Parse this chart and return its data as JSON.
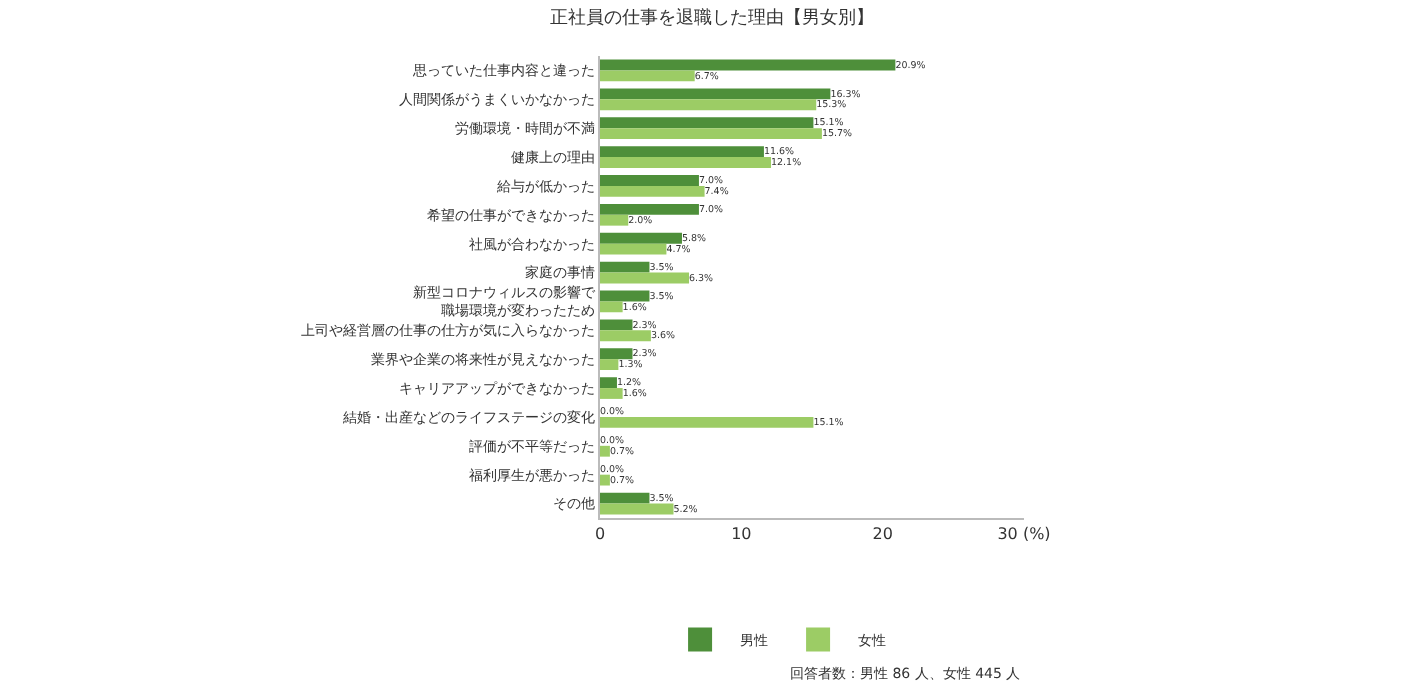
{
  "chart_data": {
    "type": "bar",
    "orientation": "horizontal",
    "title": "正社員の仕事を退職した理由【男女別】",
    "categories": [
      "思っていた仕事内容と違った",
      "人間関係がうまくいかなかった",
      "労働環境・時間が不満",
      "健康上の理由",
      "給与が低かった",
      "希望の仕事ができなかった",
      "社風が合わなかった",
      "家庭の事情",
      "新型コロナウィルスの影響で職場環境が変わったため",
      "上司や経営層の仕事の仕方が気に入らなかった",
      "業界や企業の将来性が見えなかった",
      "キャリアアップができなかった",
      "結婚・出産などのライフステージの変化",
      "評価が不平等だった",
      "福利厚生が悪かった",
      "その他"
    ],
    "series": [
      {
        "name": "男性",
        "color": "#4e8f3a",
        "values": [
          20.9,
          16.3,
          15.1,
          11.6,
          7.0,
          7.0,
          5.8,
          3.5,
          3.5,
          2.3,
          2.3,
          1.2,
          0.0,
          0.0,
          0.0,
          3.5
        ],
        "value_labels": [
          "20.9%",
          "16.3%",
          "15.1%",
          "11.6%",
          "7.0%",
          "7.0%",
          "5.8%",
          "3.5%",
          "3.5%",
          "2.3%",
          "2.3%",
          "1.2%",
          "0.0%",
          "0.0%",
          "0.0%",
          "3.5%"
        ]
      },
      {
        "name": "女性",
        "color": "#9ccc65",
        "values": [
          6.7,
          15.3,
          15.7,
          12.1,
          7.4,
          2.0,
          4.7,
          6.3,
          1.6,
          3.6,
          1.3,
          1.6,
          15.1,
          0.7,
          0.7,
          5.2
        ],
        "value_labels": [
          "6.7%",
          "15.3%",
          "15.7%",
          "12.1%",
          "7.4%",
          "2.0%",
          "4.7%",
          "6.3%",
          "1.6%",
          "3.6%",
          "1.3%",
          "1.6%",
          "15.1%",
          "0.7%",
          "0.7%",
          "5.2%"
        ]
      }
    ],
    "xlim": [
      0,
      30
    ],
    "xticks": [
      0,
      10,
      20,
      {
        "value": 30,
        "label": "30 (%)"
      }
    ],
    "legend": "bottom",
    "annotations": [
      "回答者数：男性 86 人、女性 445 人"
    ]
  }
}
